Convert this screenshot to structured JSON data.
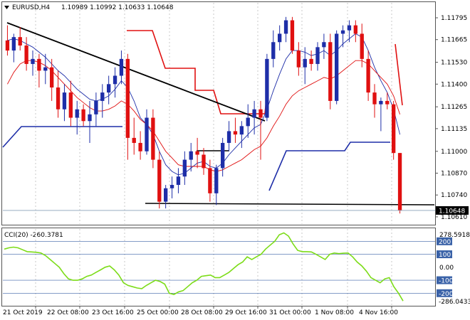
{
  "header": {
    "symbol_timeframe": "EURUSD,H4",
    "ohlc": "1.10989 1.10992 1.10633 1.10648"
  },
  "price_panel": {
    "right_axis_labels": [
      "1.11795",
      "1.11665",
      "1.11530",
      "1.11400",
      "1.11265",
      "1.11135",
      "1.11000",
      "1.10870",
      "1.10740",
      "1.10610"
    ],
    "current_price_label": "1.10648"
  },
  "indicator_panel": {
    "title": "CCI(20) -260.3781",
    "levels": [
      "200",
      "100",
      "-100",
      "-200"
    ],
    "zero_label": "0.00",
    "max_label": "278.5918",
    "min_label": "-286.0433"
  },
  "time_axis": {
    "labels": [
      "21 Oct 2019",
      "22 Oct 08:00",
      "23 Oct 16:00",
      "25 Oct 00:00",
      "28 Oct 08:00",
      "29 Oct 16:00",
      "31 Oct 00:00",
      "1 Nov 08:00",
      "4 Nov 16:00"
    ]
  },
  "colors": {
    "bull": "#1e2ea8",
    "bear": "#e01010",
    "trendline": "#000000",
    "cci_line": "#7cdc18",
    "level_band": "#3a62a8"
  },
  "chart_data": [
    {
      "type": "candlestick",
      "title": "EURUSD,H4",
      "ylim": [
        1.1058,
        1.1185
      ],
      "candles": [
        {
          "o": 1.1166,
          "h": 1.1175,
          "l": 1.1157,
          "c": 1.116
        },
        {
          "o": 1.116,
          "h": 1.117,
          "l": 1.1153,
          "c": 1.1168
        },
        {
          "o": 1.1168,
          "h": 1.1174,
          "l": 1.116,
          "c": 1.1163
        },
        {
          "o": 1.1163,
          "h": 1.1168,
          "l": 1.1148,
          "c": 1.1152
        },
        {
          "o": 1.1152,
          "h": 1.116,
          "l": 1.1145,
          "c": 1.1155
        },
        {
          "o": 1.1155,
          "h": 1.1158,
          "l": 1.1138,
          "c": 1.1148
        },
        {
          "o": 1.1148,
          "h": 1.1158,
          "l": 1.114,
          "c": 1.115
        },
        {
          "o": 1.115,
          "h": 1.1155,
          "l": 1.113,
          "c": 1.1138
        },
        {
          "o": 1.1138,
          "h": 1.1148,
          "l": 1.112,
          "c": 1.1125
        },
        {
          "o": 1.1125,
          "h": 1.114,
          "l": 1.1118,
          "c": 1.1135
        },
        {
          "o": 1.1135,
          "h": 1.1142,
          "l": 1.1115,
          "c": 1.112
        },
        {
          "o": 1.112,
          "h": 1.113,
          "l": 1.111,
          "c": 1.1125
        },
        {
          "o": 1.1125,
          "h": 1.1128,
          "l": 1.1115,
          "c": 1.1118
        },
        {
          "o": 1.1118,
          "h": 1.113,
          "l": 1.1105,
          "c": 1.1122
        },
        {
          "o": 1.1122,
          "h": 1.1135,
          "l": 1.1115,
          "c": 1.113
        },
        {
          "o": 1.113,
          "h": 1.114,
          "l": 1.112,
          "c": 1.1135
        },
        {
          "o": 1.1135,
          "h": 1.1145,
          "l": 1.1128,
          "c": 1.114
        },
        {
          "o": 1.114,
          "h": 1.115,
          "l": 1.1132,
          "c": 1.1145
        },
        {
          "o": 1.1145,
          "h": 1.116,
          "l": 1.114,
          "c": 1.1155
        },
        {
          "o": 1.1155,
          "h": 1.1158,
          "l": 1.1095,
          "c": 1.1108
        },
        {
          "o": 1.1108,
          "h": 1.112,
          "l": 1.1098,
          "c": 1.1105
        },
        {
          "o": 1.1105,
          "h": 1.1112,
          "l": 1.1095,
          "c": 1.11
        },
        {
          "o": 1.11,
          "h": 1.1125,
          "l": 1.1098,
          "c": 1.112
        },
        {
          "o": 1.112,
          "h": 1.1125,
          "l": 1.109,
          "c": 1.1095
        },
        {
          "o": 1.1095,
          "h": 1.11,
          "l": 1.1066,
          "c": 1.107
        },
        {
          "o": 1.107,
          "h": 1.108,
          "l": 1.1066,
          "c": 1.1078
        },
        {
          "o": 1.1078,
          "h": 1.1085,
          "l": 1.1072,
          "c": 1.108
        },
        {
          "o": 1.108,
          "h": 1.109,
          "l": 1.1075,
          "c": 1.1085
        },
        {
          "o": 1.1085,
          "h": 1.11,
          "l": 1.108,
          "c": 1.1095
        },
        {
          "o": 1.1095,
          "h": 1.1105,
          "l": 1.1088,
          "c": 1.11
        },
        {
          "o": 1.11,
          "h": 1.1108,
          "l": 1.109,
          "c": 1.1098
        },
        {
          "o": 1.1098,
          "h": 1.1102,
          "l": 1.1086,
          "c": 1.109
        },
        {
          "o": 1.109,
          "h": 1.1095,
          "l": 1.107,
          "c": 1.1075
        },
        {
          "o": 1.1075,
          "h": 1.1092,
          "l": 1.1068,
          "c": 1.109
        },
        {
          "o": 1.109,
          "h": 1.1108,
          "l": 1.1085,
          "c": 1.1105
        },
        {
          "o": 1.1105,
          "h": 1.1118,
          "l": 1.11,
          "c": 1.1112
        },
        {
          "o": 1.1112,
          "h": 1.112,
          "l": 1.1105,
          "c": 1.111
        },
        {
          "o": 1.111,
          "h": 1.1118,
          "l": 1.1102,
          "c": 1.1115
        },
        {
          "o": 1.1115,
          "h": 1.1128,
          "l": 1.1108,
          "c": 1.112
        },
        {
          "o": 1.112,
          "h": 1.113,
          "l": 1.111,
          "c": 1.1125
        },
        {
          "o": 1.1125,
          "h": 1.113,
          "l": 1.1095,
          "c": 1.112
        },
        {
          "o": 1.112,
          "h": 1.1158,
          "l": 1.1118,
          "c": 1.1155
        },
        {
          "o": 1.1155,
          "h": 1.1172,
          "l": 1.115,
          "c": 1.1165
        },
        {
          "o": 1.1165,
          "h": 1.1175,
          "l": 1.116,
          "c": 1.117
        },
        {
          "o": 1.117,
          "h": 1.118,
          "l": 1.1165,
          "c": 1.1178
        },
        {
          "o": 1.1178,
          "h": 1.118,
          "l": 1.1158,
          "c": 1.116
        },
        {
          "o": 1.116,
          "h": 1.1165,
          "l": 1.1145,
          "c": 1.115
        },
        {
          "o": 1.115,
          "h": 1.1162,
          "l": 1.114,
          "c": 1.1155
        },
        {
          "o": 1.1155,
          "h": 1.116,
          "l": 1.1148,
          "c": 1.1152
        },
        {
          "o": 1.1152,
          "h": 1.1165,
          "l": 1.1148,
          "c": 1.1162
        },
        {
          "o": 1.1162,
          "h": 1.117,
          "l": 1.1155,
          "c": 1.1165
        },
        {
          "o": 1.1165,
          "h": 1.117,
          "l": 1.1125,
          "c": 1.113
        },
        {
          "o": 1.113,
          "h": 1.1172,
          "l": 1.1128,
          "c": 1.117
        },
        {
          "o": 1.117,
          "h": 1.1175,
          "l": 1.1162,
          "c": 1.1172
        },
        {
          "o": 1.1172,
          "h": 1.1178,
          "l": 1.1165,
          "c": 1.1175
        },
        {
          "o": 1.1175,
          "h": 1.1178,
          "l": 1.1165,
          "c": 1.117
        },
        {
          "o": 1.117,
          "h": 1.1176,
          "l": 1.115,
          "c": 1.1155
        },
        {
          "o": 1.1155,
          "h": 1.116,
          "l": 1.113,
          "c": 1.1135
        },
        {
          "o": 1.1135,
          "h": 1.114,
          "l": 1.112,
          "c": 1.1128
        },
        {
          "o": 1.1128,
          "h": 1.1132,
          "l": 1.1112,
          "c": 1.113
        },
        {
          "o": 1.113,
          "h": 1.1135,
          "l": 1.1125,
          "c": 1.1128
        },
        {
          "o": 1.1128,
          "h": 1.113,
          "l": 1.1095,
          "c": 1.1099
        },
        {
          "o": 1.1099,
          "h": 1.1099,
          "l": 1.1063,
          "c": 1.1065
        }
      ],
      "overlays": [
        {
          "name": "moving-average-blue-thin",
          "values": [
            1.1166,
            1.1167,
            1.1166,
            1.1164,
            1.1162,
            1.1159,
            1.1156,
            1.1152,
            1.1148,
            1.1145,
            1.1141,
            1.1137,
            1.1134,
            1.1131,
            1.113,
            1.1131,
            1.1133,
            1.1137,
            1.1142,
            1.1138,
            1.113,
            1.112,
            1.1116,
            1.111,
            1.11,
            1.1092,
            1.1088,
            1.1086,
            1.1087,
            1.109,
            1.1093,
            1.1094,
            1.1091,
            1.109,
            1.1093,
            1.1098,
            1.1102,
            1.1106,
            1.111,
            1.1114,
            1.1116,
            1.1125,
            1.1136,
            1.1146,
            1.1155,
            1.116,
            1.116,
            1.1159,
            1.1157,
            1.1158,
            1.116,
            1.1157,
            1.116,
            1.1164,
            1.1167,
            1.117,
            1.1168,
            1.116,
            1.115,
            1.1142,
            1.1135,
            1.1125,
            1.111
          ]
        },
        {
          "name": "moving-average-red-thin",
          "values": [
            1.114,
            1.1147,
            1.1152,
            1.1154,
            1.1154,
            1.1153,
            1.1151,
            1.1148,
            1.1144,
            1.114,
            1.1136,
            1.1132,
            1.1129,
            1.1126,
            1.1124,
            1.1124,
            1.1125,
            1.1127,
            1.113,
            1.1128,
            1.1124,
            1.1119,
            1.1116,
            1.1112,
            1.1106,
            1.11,
            1.1096,
            1.1092,
            1.1091,
            1.1091,
            1.1091,
            1.1091,
            1.1089,
            1.1088,
            1.1089,
            1.1091,
            1.1093,
            1.1095,
            1.1098,
            1.1101,
            1.1103,
            1.1108,
            1.1115,
            1.1121,
            1.1128,
            1.1133,
            1.1136,
            1.1138,
            1.114,
            1.1142,
            1.1144,
            1.1143,
            1.1145,
            1.1148,
            1.1151,
            1.1154,
            1.1154,
            1.1152,
            1.1148,
            1.1144,
            1.114,
            1.1133,
            1.1122
          ]
        }
      ]
    },
    {
      "type": "line",
      "title": "CCI(20) -260.3781",
      "ylim": [
        -286.0433,
        278.5918
      ],
      "series": [
        {
          "values": [
            140,
            150,
            155,
            150,
            135,
            120,
            118,
            115,
            110,
            90,
            60,
            30,
            0,
            -50,
            -90,
            -100,
            -100,
            -90,
            -70,
            -60,
            -40,
            -20,
            0,
            10,
            -20,
            -60,
            -120,
            -140,
            -150,
            -160,
            -165,
            -140,
            -120,
            -100,
            -110,
            -130,
            -200,
            -210,
            -190,
            -180,
            -150,
            -120,
            -100,
            -70,
            -65,
            -60,
            -80,
            -80,
            -60,
            -40,
            -10,
            20,
            40,
            80,
            60,
            80,
            100,
            140,
            170,
            200,
            250,
            265,
            240,
            180,
            130,
            120,
            120,
            118,
            100,
            80,
            60,
            100,
            110,
            105,
            108,
            110,
            80,
            40,
            10,
            -30,
            -80,
            -100,
            -120,
            -90,
            -80,
            -150,
            -200,
            -260
          ]
        }
      ]
    }
  ]
}
